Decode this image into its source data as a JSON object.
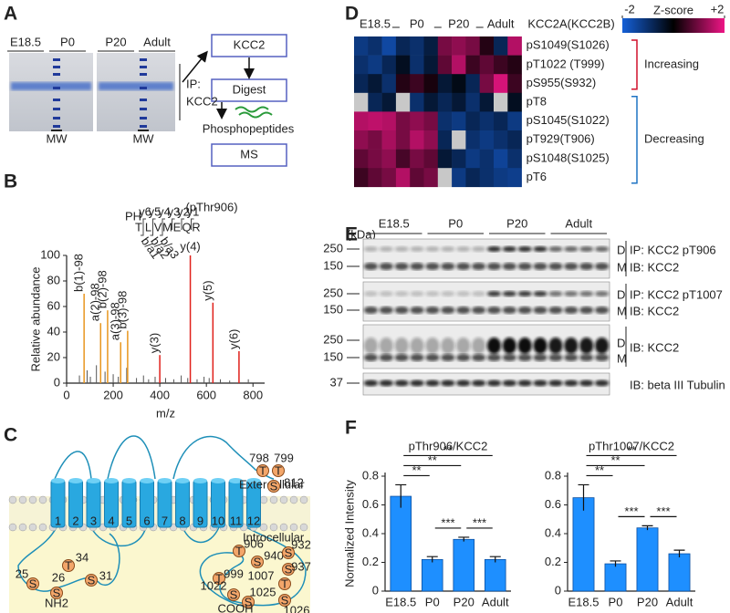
{
  "panel_labels": [
    "A",
    "B",
    "C",
    "D",
    "E",
    "F"
  ],
  "panel_a": {
    "groups": [
      "E18.5",
      "P0",
      "P20",
      "Adult"
    ],
    "mw_labels": [
      "MW",
      "MW"
    ],
    "ip_label": [
      "IP:",
      "KCC2"
    ],
    "flow": [
      "KCC2",
      "Digest",
      "Phosphopeptides",
      "MS"
    ]
  },
  "panel_c": {
    "extracellular_label": "Extercellular",
    "intracellular_label": "Introcellular",
    "helices": [
      "1",
      "2",
      "3",
      "4",
      "5",
      "6",
      "7",
      "8",
      "9",
      "10",
      "11",
      "12"
    ],
    "residues": [
      {
        "letter": "T",
        "number": "798"
      },
      {
        "letter": "T",
        "number": "799"
      },
      {
        "letter": "S",
        "number": "812"
      },
      {
        "letter": "S",
        "number": "25"
      },
      {
        "letter": "S",
        "number": "26"
      },
      {
        "letter": "T",
        "number": "34"
      },
      {
        "letter": "S",
        "number": "31"
      },
      {
        "letter": "T",
        "number": "906"
      },
      {
        "letter": "S",
        "number": "940"
      },
      {
        "letter": "S",
        "number": "932"
      },
      {
        "letter": "S",
        "number": "937"
      },
      {
        "letter": "T",
        "number": "999"
      },
      {
        "letter": "T",
        "number": "1007"
      },
      {
        "letter": "S",
        "number": "1022"
      },
      {
        "letter": "S",
        "number": "1025"
      },
      {
        "letter": "S",
        "number": "1026"
      }
    ],
    "n_term": "NH2",
    "c_term": "COOH"
  },
  "panel_d": {
    "groups": [
      "E18.5",
      "P0",
      "P20",
      "Adult"
    ],
    "header": "KCC2A(KCC2B)",
    "colorbar": {
      "label": "Z-score",
      "zlim": [
        -2,
        2
      ],
      "ticks": [
        -2,
        {
          "value": 2,
          "label": "+2"
        }
      ]
    },
    "trends": [
      {
        "label": "Increasing",
        "color": "#d0112b",
        "rows": [
          {
            "site": "pS1049(S1026)",
            "values": [
              -1.2,
              -1.0,
              -1.5,
              -0.8,
              -1.0,
              -0.6,
              1.0,
              1.2,
              1.0,
              0.3,
              -0.8,
              1.5
            ]
          },
          {
            "site": "pT1022 (T999)",
            "values": [
              -1.0,
              -1.2,
              -0.8,
              -0.3,
              -1.0,
              -0.5,
              0.8,
              1.5,
              0.5,
              0.8,
              0.5,
              0.3
            ]
          },
          {
            "site": "pS955(S932)",
            "values": [
              -0.8,
              -0.5,
              -1.0,
              0.3,
              0.5,
              0.2,
              -0.5,
              -0.2,
              -0.8,
              1.0,
              1.8,
              0.5
            ]
          }
        ]
      },
      {
        "label": "Decreasing",
        "color": "#1f74c4",
        "rows": [
          {
            "site": "pT8",
            "values": [
              null,
              -0.8,
              -0.5,
              null,
              -1.0,
              -0.5,
              -0.8,
              -0.5,
              -1.0,
              -0.5,
              null,
              -0.3
            ]
          },
          {
            "site": "pS1045(S1022)",
            "values": [
              1.5,
              1.6,
              1.5,
              1.0,
              1.2,
              1.0,
              -1.0,
              -1.2,
              -0.8,
              -1.0,
              -0.8,
              -1.2
            ]
          },
          {
            "site": "pT929(T906)",
            "values": [
              1.2,
              1.0,
              1.4,
              1.0,
              1.5,
              1.2,
              -0.8,
              null,
              -1.0,
              -1.2,
              -1.0,
              -0.8
            ]
          },
          {
            "site": "pS1048(S1025)",
            "values": [
              0.8,
              1.0,
              1.2,
              0.6,
              1.0,
              0.8,
              -0.5,
              -0.8,
              -1.2,
              -1.0,
              -1.4,
              -1.0
            ]
          },
          {
            "site": "pT6",
            "values": [
              0.5,
              0.8,
              1.0,
              1.5,
              0.8,
              1.0,
              null,
              -1.2,
              -0.8,
              -1.0,
              -1.2,
              -1.3
            ]
          }
        ]
      }
    ]
  },
  "panel_e": {
    "kda_label": "(kDa)",
    "groups": [
      "E18.5",
      "P0",
      "P20",
      "Adult"
    ],
    "blots": [
      {
        "markers": [
          250,
          150
        ],
        "bands": [
          "D",
          "M"
        ],
        "labels": [
          "IP: KCC2 pT906",
          "IB: KCC2"
        ]
      },
      {
        "markers": [
          250,
          150
        ],
        "bands": [
          "D",
          "M"
        ],
        "labels": [
          "IP: KCC2 pT1007",
          "IB: KCC2"
        ]
      },
      {
        "markers": [
          250,
          150
        ],
        "bands": [
          "D",
          "M"
        ],
        "labels": [
          "IB: KCC2"
        ]
      },
      {
        "markers": [
          37
        ],
        "bands": [],
        "labels": [
          "IB: beta III Tubulin"
        ]
      }
    ]
  },
  "chart_data": [
    {
      "type": "spectrum",
      "title": "(pThr906)",
      "sequence": [
        "T",
        "L",
        "V",
        "M",
        "E",
        "Q",
        "R"
      ],
      "y_ions": [
        "y6",
        "y5",
        "y4",
        "y3",
        "y2",
        "y1"
      ],
      "modification": "PH",
      "b_ions": [
        "b/a1",
        "b/a2",
        "b/a3"
      ],
      "y_label": "Relative abundance",
      "x_label": "m/z",
      "xlim": [
        0,
        850
      ],
      "xticks": [
        0,
        200,
        400,
        600,
        800
      ],
      "ylim": [
        0,
        100
      ],
      "yticks": [
        0,
        20,
        40,
        60,
        80,
        100
      ],
      "peaks": {
        "color": "#555555",
        "x": [
          55,
          88,
          102,
          128,
          165,
          200,
          222,
          258,
          300,
          330,
          352,
          380,
          425,
          460,
          492,
          520,
          560,
          590,
          612,
          660,
          700,
          780
        ],
        "values": [
          6,
          10,
          5,
          14,
          9,
          7,
          5,
          12,
          4,
          6,
          3,
          5,
          4,
          3,
          6,
          4,
          3,
          5,
          4,
          3,
          2,
          3
        ]
      },
      "labeled_peaks": {
        "x": [
          75,
          146,
          176,
          232,
          262,
          400,
          531,
          628,
          740
        ],
        "values": [
          70,
          47,
          57,
          32,
          41,
          22,
          100,
          63,
          25
        ],
        "labels": [
          "b(1)-98",
          "a(2)-98",
          "b(2)-98",
          "a(3)-98",
          "b(3)-98",
          "y(3)",
          "y(4)",
          "y(5)",
          "y(6)"
        ],
        "colors": [
          "#e8961e",
          "#e8961e",
          "#e8961e",
          "#e8961e",
          "#e8961e",
          "#e0201b",
          "#e0201b",
          "#e0201b",
          "#e0201b"
        ]
      }
    },
    {
      "type": "bar",
      "title": "pThr906/KCC2",
      "y_label": "Normalized Intensity",
      "categories": [
        "E18.5",
        "P0",
        "P20",
        "Adult"
      ],
      "values": [
        0.66,
        0.22,
        0.36,
        0.22
      ],
      "errors": [
        0.08,
        0.02,
        0.015,
        0.02
      ],
      "color": "#1e8fff",
      "ylim": [
        0,
        0.8
      ],
      "yticks": [
        0,
        0.2,
        0.4,
        0.6,
        0.8
      ],
      "significance": [
        {
          "pair": [
            "E18.5",
            "P0"
          ],
          "label": "**"
        },
        {
          "pair": [
            "E18.5",
            "P20"
          ],
          "label": "**"
        },
        {
          "pair": [
            "E18.5",
            "Adult"
          ],
          "label": "**"
        },
        {
          "pair": [
            "P0",
            "P20"
          ],
          "label": "***"
        },
        {
          "pair": [
            "P20",
            "Adult"
          ],
          "label": "***"
        }
      ]
    },
    {
      "type": "bar",
      "title": "pThr1007/KCC2",
      "categories": [
        "E18.5",
        "P0",
        "P20",
        "Adult"
      ],
      "values": [
        0.65,
        0.19,
        0.44,
        0.26
      ],
      "errors": [
        0.09,
        0.02,
        0.015,
        0.025
      ],
      "color": "#1e8fff",
      "ylim": [
        0,
        0.8
      ],
      "yticks": [
        0,
        0.2,
        0.4,
        0.6,
        0.8
      ],
      "significance": [
        {
          "pair": [
            "E18.5",
            "P0"
          ],
          "label": "**"
        },
        {
          "pair": [
            "E18.5",
            "P20"
          ],
          "label": "**"
        },
        {
          "pair": [
            "E18.5",
            "Adult"
          ],
          "label": "**"
        },
        {
          "pair": [
            "P0",
            "P20"
          ],
          "label": "***"
        },
        {
          "pair": [
            "P20",
            "Adult"
          ],
          "label": "***"
        }
      ]
    }
  ]
}
